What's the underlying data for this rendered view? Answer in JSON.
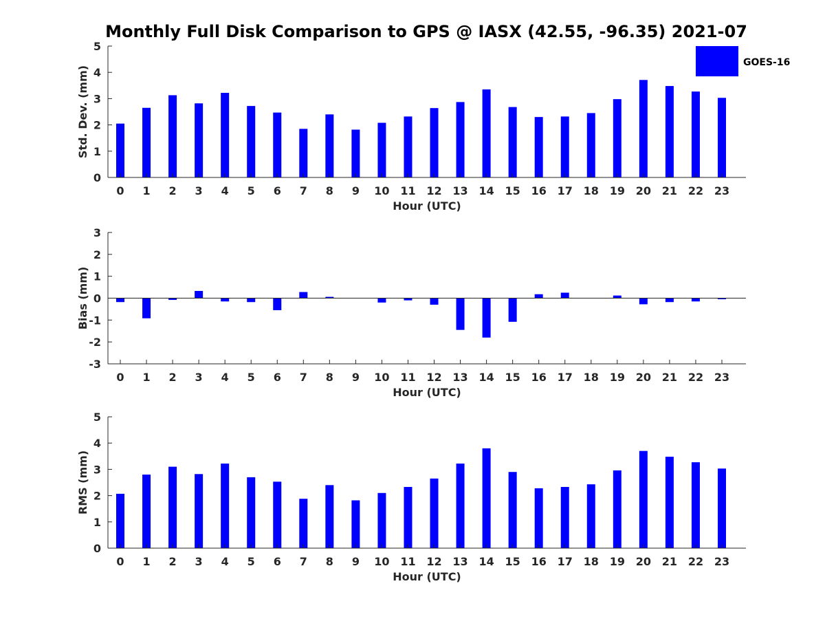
{
  "title": "Monthly Full Disk Comparison to GPS @ IASX (42.55, -96.35) 2021-07",
  "colors": {
    "bar": "#0000ff",
    "axis": "#262626",
    "background": "#ffffff"
  },
  "legend": {
    "label": "GOES-16",
    "placement": "top-right"
  },
  "chart_data": [
    {
      "type": "bar",
      "categories": [
        "0",
        "1",
        "2",
        "3",
        "4",
        "5",
        "6",
        "7",
        "8",
        "9",
        "10",
        "11",
        "12",
        "13",
        "14",
        "15",
        "16",
        "17",
        "18",
        "19",
        "20",
        "21",
        "22",
        "23"
      ],
      "series": [
        {
          "name": "GOES-16",
          "values": [
            2.05,
            2.65,
            3.13,
            2.82,
            3.22,
            2.72,
            2.47,
            1.85,
            2.4,
            1.82,
            2.08,
            2.32,
            2.64,
            2.87,
            3.35,
            2.68,
            2.3,
            2.32,
            2.45,
            2.98,
            3.71,
            3.48,
            3.27,
            3.03
          ]
        }
      ],
      "xlabel": "Hour (UTC)",
      "ylabel": "Std. Dev. (mm)",
      "ylim": [
        0,
        5
      ],
      "yticks": [
        "0",
        "1",
        "2",
        "3",
        "4",
        "5"
      ],
      "grid": false
    },
    {
      "type": "bar",
      "categories": [
        "0",
        "1",
        "2",
        "3",
        "4",
        "5",
        "6",
        "7",
        "8",
        "9",
        "10",
        "11",
        "12",
        "13",
        "14",
        "15",
        "16",
        "17",
        "18",
        "19",
        "20",
        "21",
        "22",
        "23"
      ],
      "series": [
        {
          "name": "GOES-16",
          "values": [
            -0.18,
            -0.92,
            -0.08,
            0.33,
            -0.15,
            -0.18,
            -0.55,
            0.28,
            0.06,
            0.0,
            -0.2,
            -0.1,
            -0.3,
            -1.45,
            -1.8,
            -1.08,
            0.18,
            0.25,
            0.0,
            0.12,
            -0.28,
            -0.18,
            -0.15,
            -0.05
          ]
        }
      ],
      "xlabel": "Hour (UTC)",
      "ylabel": "Bias (mm)",
      "ylim": [
        -3,
        3
      ],
      "yticks": [
        "-3",
        "-2",
        "-1",
        "0",
        "1",
        "2",
        "3"
      ],
      "grid": false
    },
    {
      "type": "bar",
      "categories": [
        "0",
        "1",
        "2",
        "3",
        "4",
        "5",
        "6",
        "7",
        "8",
        "9",
        "10",
        "11",
        "12",
        "13",
        "14",
        "15",
        "16",
        "17",
        "18",
        "19",
        "20",
        "21",
        "22",
        "23"
      ],
      "series": [
        {
          "name": "GOES-16",
          "values": [
            2.07,
            2.8,
            3.1,
            2.82,
            3.22,
            2.7,
            2.53,
            1.88,
            2.4,
            1.82,
            2.1,
            2.33,
            2.65,
            3.22,
            3.8,
            2.9,
            2.28,
            2.33,
            2.43,
            2.96,
            3.7,
            3.48,
            3.27,
            3.03
          ]
        }
      ],
      "xlabel": "Hour (UTC)",
      "ylabel": "RMS (mm)",
      "ylim": [
        0,
        5
      ],
      "yticks": [
        "0",
        "1",
        "2",
        "3",
        "4",
        "5"
      ],
      "grid": false
    }
  ]
}
